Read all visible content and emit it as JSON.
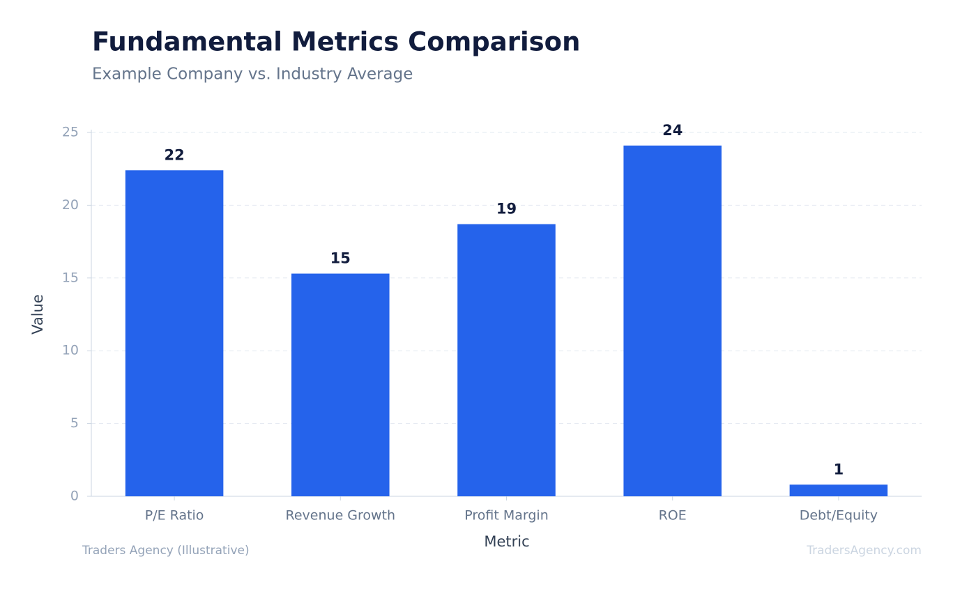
{
  "chart_data": {
    "type": "bar",
    "title": "Fundamental Metrics Comparison",
    "subtitle": "Example Company vs. Industry Average",
    "x_label": "Metric",
    "y_label": "Value",
    "categories": [
      "P/E Ratio",
      "Revenue Growth",
      "Profit Margin",
      "ROE",
      "Debt/Equity"
    ],
    "values": [
      22.4,
      15.3,
      18.7,
      24.1,
      0.8
    ],
    "value_labels": [
      "22",
      "15",
      "19",
      "24",
      "1"
    ],
    "color": "#2563eb",
    "ylim": [
      0,
      25
    ],
    "yticks": [
      0,
      5,
      10,
      15,
      20,
      25
    ],
    "grid": true,
    "source": "Traders Agency (Illustrative)",
    "watermark": "TradersAgency.com"
  }
}
